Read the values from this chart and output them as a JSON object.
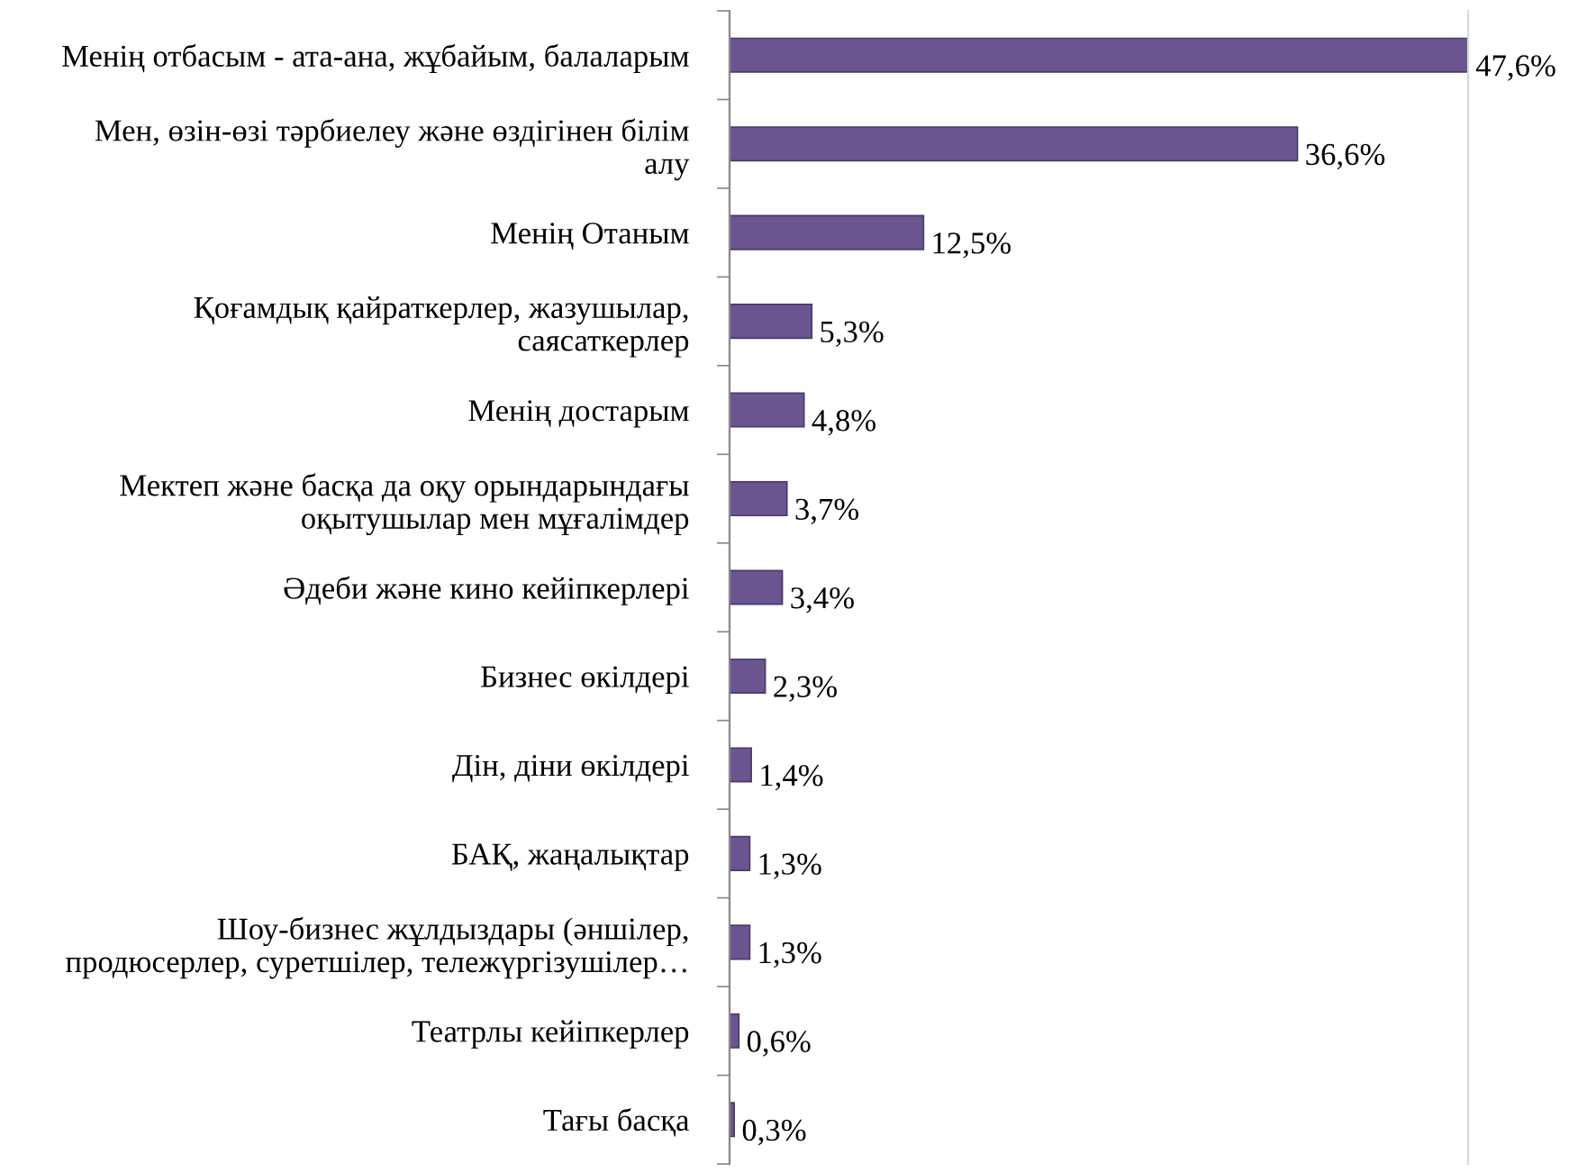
{
  "chart_data": {
    "type": "bar",
    "orientation": "horizontal",
    "categories": [
      "Менің отбасым - ата-ана, жұбайым, балаларым",
      "Мен, өзін-өзі тәрбиелеу және өздігінен білім\nалу",
      "Менің Отаным",
      "Қоғамдық қайраткерлер, жазушылар,\nсаясаткерлер",
      "Менің достарым",
      "Мектеп және басқа да оқу орындарындағы\nоқытушылар мен мұғалімдер",
      "Әдеби және кино кейіпкерлері",
      "Бизнес өкілдері",
      "Дін, діни өкілдері",
      "БАҚ, жаңалықтар",
      "Шоу-бизнес жұлдыздары (әншілер,\nпродюсерлер, суретшілер, тележүргізушілер…",
      "Театрлы кейіпкерлер",
      "Тағы басқа"
    ],
    "values": [
      47.6,
      36.6,
      12.5,
      5.3,
      4.8,
      3.7,
      3.4,
      2.3,
      1.4,
      1.3,
      1.3,
      0.6,
      0.3
    ],
    "value_labels": [
      "47,6%",
      "36,6%",
      "12,5%",
      "5,3%",
      "4,8%",
      "3,7%",
      "3,4%",
      "2,3%",
      "1,4%",
      "1,3%",
      "1,3%",
      "0,6%",
      "0,3%"
    ],
    "color": "#6b5590",
    "grid": false,
    "legend": false
  }
}
